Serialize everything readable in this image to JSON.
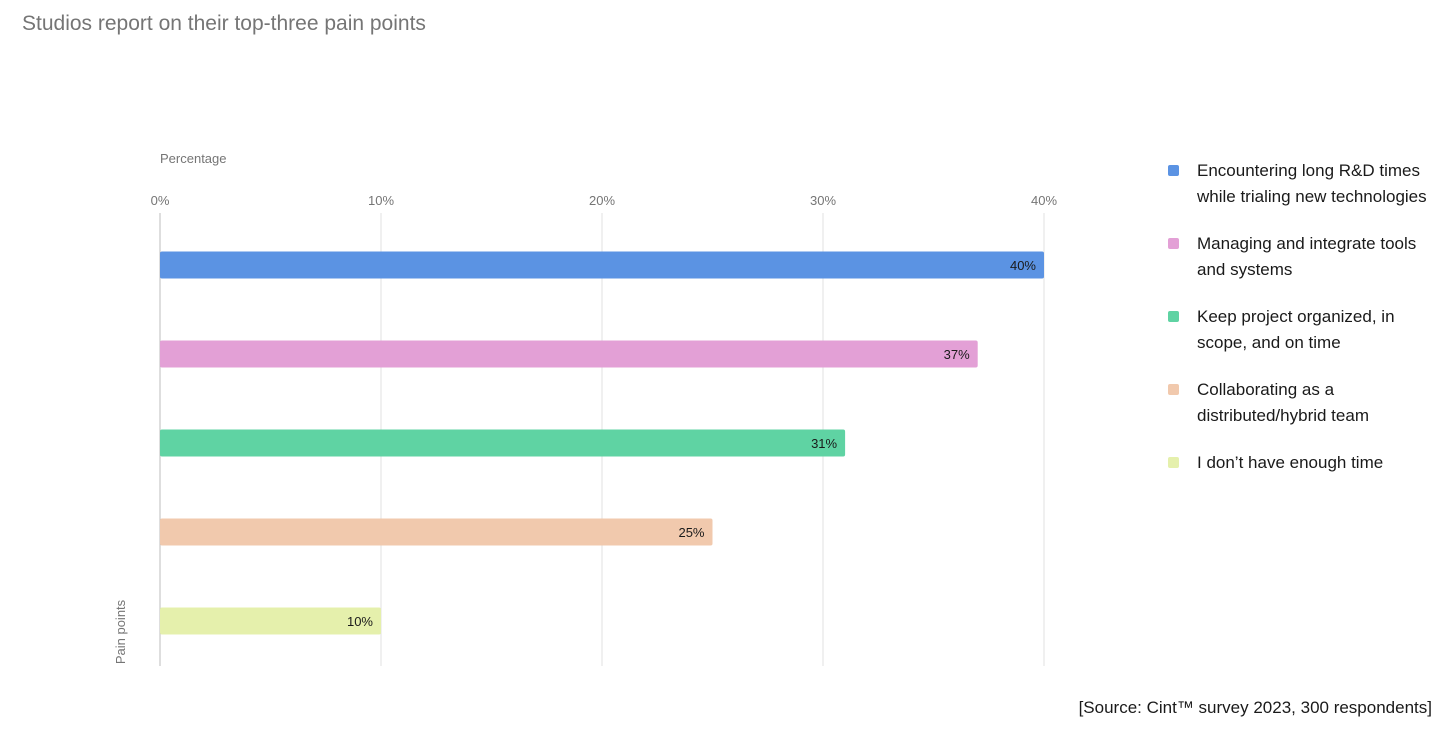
{
  "chart_data": {
    "type": "bar",
    "orientation": "horizontal",
    "title": "Studios report on their top-three pain points",
    "xlabel": "Percentage",
    "ylabel": "Pain points",
    "xlim": [
      0,
      40
    ],
    "x_ticks": [
      "0%",
      "10%",
      "20%",
      "30%",
      "40%"
    ],
    "grid": "vertical",
    "legend_position": "right",
    "categories": [
      "Encountering long R&D times while trialing new technologies",
      "Managing and integrate tools and systems",
      "Keep project organized, in scope, and on time",
      "Collaborating as a distributed/hybrid team",
      "I don’t have enough time"
    ],
    "values": [
      40,
      37,
      31,
      25,
      10
    ],
    "data_labels": [
      "40%",
      "37%",
      "31%",
      "25%",
      "10%"
    ],
    "colors": [
      "#5b93e3",
      "#e3a0d6",
      "#5fd3a3",
      "#f1c9ad",
      "#e5f0ac"
    ]
  },
  "source": "[Source: Cint™ survey 2023, 300 respondents]"
}
